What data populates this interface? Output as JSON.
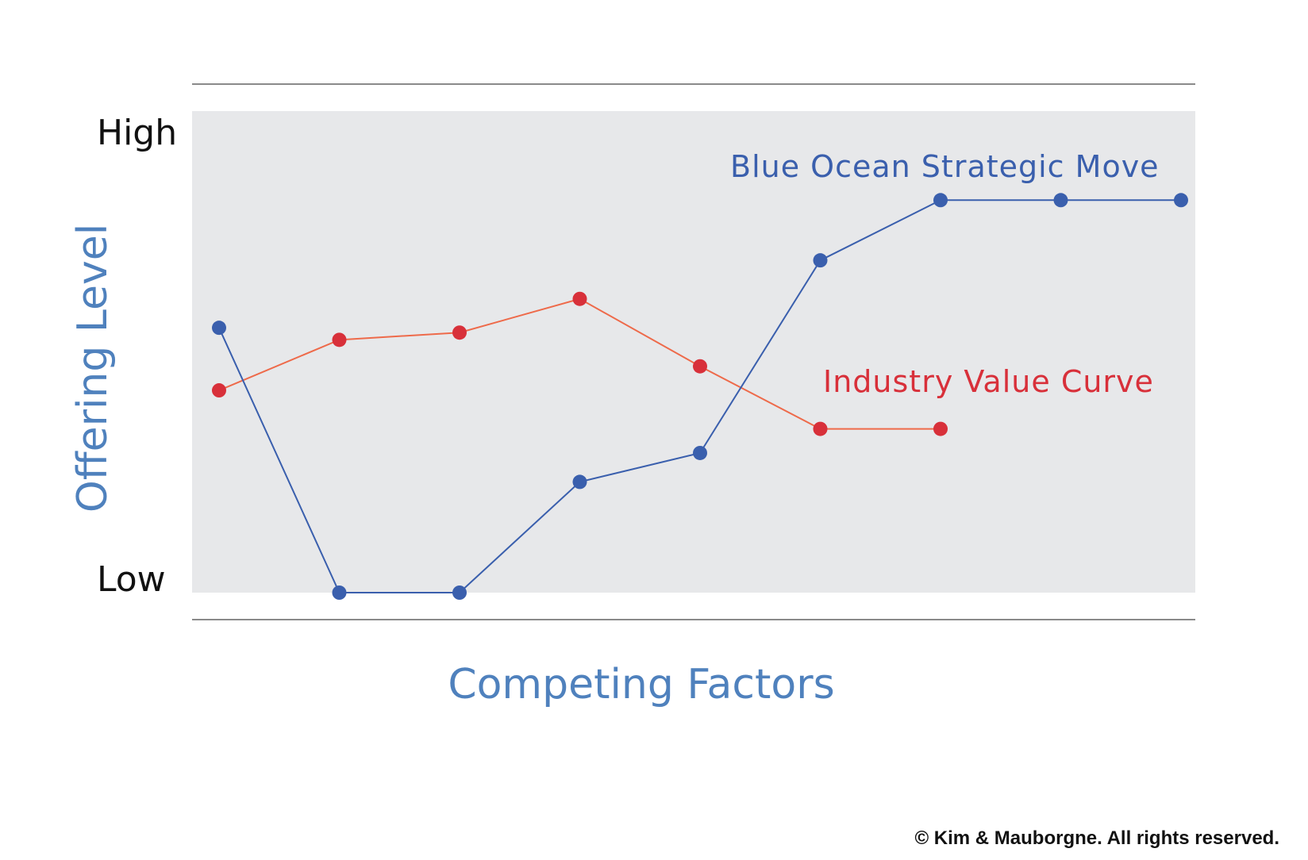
{
  "chart_data": {
    "type": "line",
    "xlabel": "Competing Factors",
    "ylabel": "Offering Level",
    "y_tick_labels": {
      "high": "High",
      "low": "Low"
    },
    "ylim": [
      0,
      100
    ],
    "grid": false,
    "series": [
      {
        "name": "Blue Ocean Strategic Move",
        "color": "#3a5fad",
        "x": [
          1,
          2,
          3,
          4,
          5,
          6,
          7,
          8,
          9
        ],
        "values": [
          55,
          0,
          0,
          23,
          29,
          69,
          81.5,
          81.5,
          81.5
        ]
      },
      {
        "name": "Industry Value Curve",
        "color": "#d8303a",
        "line_color": "#ee6a4a",
        "x": [
          1,
          2,
          3,
          4,
          5,
          6,
          7
        ],
        "values": [
          42,
          52.5,
          54,
          61,
          47,
          34,
          34
        ]
      }
    ]
  },
  "copyright": "© Kim & Mauborgne. All rights reserved."
}
